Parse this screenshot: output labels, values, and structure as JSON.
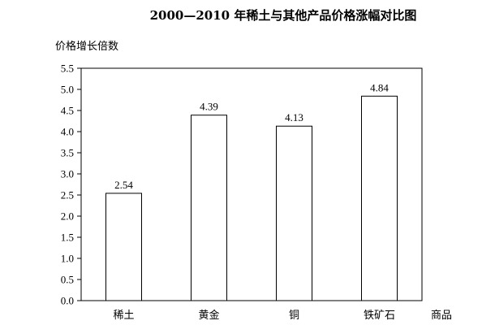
{
  "chart_data": {
    "type": "bar",
    "title": "2000—2010 年稀土与其他产品价格涨幅对比图",
    "ylabel": "价格增长倍数",
    "xlabel": "商品",
    "categories": [
      "稀土",
      "黄金",
      "铜",
      "铁矿石"
    ],
    "values": [
      2.54,
      4.39,
      4.13,
      4.84
    ],
    "value_labels": [
      "2.54",
      "4.39",
      "4.13",
      "4.84"
    ],
    "ylim": [
      0,
      5.5
    ],
    "yticks": [
      "0.0",
      "0.5",
      "1.0",
      "1.5",
      "2.0",
      "2.5",
      "3.0",
      "3.5",
      "4.0",
      "4.5",
      "5.0",
      "5.5"
    ],
    "grid": false,
    "bar_fill": "#ffffff",
    "bar_stroke": "#000000"
  }
}
